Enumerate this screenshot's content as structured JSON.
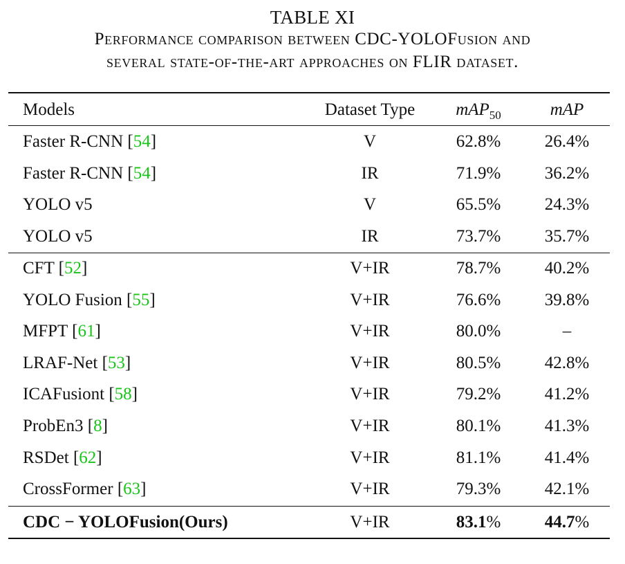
{
  "table": {
    "label": "TABLE XI",
    "caption_line1": "Performance comparison between CDC-YOLOFusion and",
    "caption_line2": "several state-of-the-art approaches on FLIR dataset.",
    "headers": {
      "models": "Models",
      "dataset_type": "Dataset Type",
      "map50_main": "mAP",
      "map50_sub": "50",
      "map": "mAP"
    },
    "groups": [
      {
        "rows": [
          {
            "model": "Faster R-CNN",
            "ref": "54",
            "type": "V",
            "map50": "62.8%",
            "map": "26.4%"
          },
          {
            "model": "Faster R-CNN",
            "ref": "54",
            "type": "IR",
            "map50": "71.9%",
            "map": "36.2%"
          },
          {
            "model": "YOLO v5",
            "ref": "",
            "type": "V",
            "map50": "65.5%",
            "map": "24.3%"
          },
          {
            "model": "YOLO v5",
            "ref": "",
            "type": "IR",
            "map50": "73.7%",
            "map": "35.7%"
          }
        ]
      },
      {
        "rows": [
          {
            "model": "CFT",
            "ref": "52",
            "type": "V+IR",
            "map50": "78.7%",
            "map": "40.2%"
          },
          {
            "model": "YOLO Fusion",
            "ref": "55",
            "type": "V+IR",
            "map50": "76.6%",
            "map": "39.8%"
          },
          {
            "model": "MFPT",
            "ref": "61",
            "type": "V+IR",
            "map50": "80.0%",
            "map": "–"
          },
          {
            "model": "LRAF-Net",
            "ref": "53",
            "type": "V+IR",
            "map50": "80.5%",
            "map": "42.8%"
          },
          {
            "model": "ICAFusiont",
            "ref": "58",
            "type": "V+IR",
            "map50": "79.2%",
            "map": "41.2%"
          },
          {
            "model": "ProbEn3",
            "ref": "8",
            "type": "V+IR",
            "map50": "80.1%",
            "map": "41.3%"
          },
          {
            "model": "RSDet",
            "ref": "62",
            "type": "V+IR",
            "map50": "81.1%",
            "map": "41.4%"
          },
          {
            "model": "CrossFormer",
            "ref": "63",
            "type": "V+IR",
            "map50": "79.3%",
            "map": "42.1%"
          }
        ]
      }
    ],
    "ours": {
      "model": "CDC − YOLOFusion(Ours)",
      "type": "V+IR",
      "map50_value": "83.1",
      "map50_unit": "%",
      "map_value": "44.7",
      "map_unit": "%"
    },
    "colors": {
      "text": "#111111",
      "reference_link": "#19c419",
      "rules": "#111111"
    }
  }
}
